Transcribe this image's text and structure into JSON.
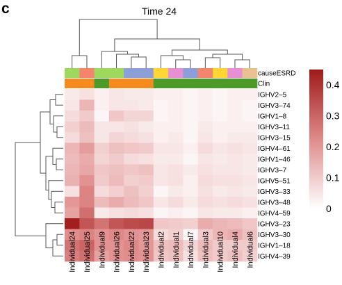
{
  "figure": {
    "panel_letter": "c",
    "annotation_labels": [
      "causeESRD",
      "Clin"
    ]
  },
  "colors": {
    "causeESRD": {
      "yellow_green": "#9ed85f",
      "salmon": "#f4856c",
      "periwinkle": "#8c9fd9",
      "yellow": "#ffd633",
      "pink": "#e68fd4",
      "tan": "#eac291"
    },
    "Clin": {
      "orange": "#f58a1e",
      "green": "#4c9a2a"
    },
    "scale": {
      "low": "#ffffff",
      "high": "#a01a1a"
    }
  },
  "chart_data": {
    "type": "heatmap",
    "title": "Time 24",
    "columns": [
      "Individual24",
      "Individual25",
      "Individual9",
      "Individual26",
      "Individual22",
      "Individual23",
      "Individual2",
      "Individual1",
      "Individual7",
      "Individual3",
      "Individual10",
      "Individual4",
      "Individual6"
    ],
    "rows": [
      "IGHV2–5",
      "IGHV3–74",
      "IGHV1–8",
      "IGHV3–11",
      "IGHV3–15",
      "IGHV4–61",
      "IGHV1–46",
      "IGHV3–7",
      "IGHV5–51",
      "IGHV3–33",
      "IGHV3–48",
      "IGHV4–59",
      "IGHV3–23",
      "IGHV3–30",
      "IGHV1–18",
      "IGHV4–39"
    ],
    "values": [
      [
        0.04,
        0.06,
        0.03,
        0.05,
        0.04,
        0.04,
        0.03,
        0.03,
        0.02,
        0.03,
        0.02,
        0.03,
        0.03
      ],
      [
        0.05,
        0.14,
        0.03,
        0.05,
        0.05,
        0.04,
        0.02,
        0.03,
        0.02,
        0.03,
        0.02,
        0.03,
        0.02
      ],
      [
        0.07,
        0.1,
        0.02,
        0.11,
        0.08,
        0.08,
        0.02,
        0.03,
        0.02,
        0.03,
        0.02,
        0.03,
        0.02
      ],
      [
        0.09,
        0.13,
        0.05,
        0.05,
        0.06,
        0.04,
        0.03,
        0.03,
        0.02,
        0.04,
        0.03,
        0.03,
        0.03
      ],
      [
        0.07,
        0.12,
        0.05,
        0.08,
        0.07,
        0.06,
        0.03,
        0.04,
        0.02,
        0.05,
        0.03,
        0.04,
        0.04
      ],
      [
        0.14,
        0.19,
        0.09,
        0.12,
        0.11,
        0.1,
        0.05,
        0.05,
        0.03,
        0.07,
        0.05,
        0.06,
        0.05
      ],
      [
        0.13,
        0.16,
        0.08,
        0.1,
        0.07,
        0.06,
        0.04,
        0.04,
        0.02,
        0.05,
        0.04,
        0.05,
        0.04
      ],
      [
        0.14,
        0.17,
        0.11,
        0.12,
        0.11,
        0.12,
        0.05,
        0.06,
        0.04,
        0.06,
        0.05,
        0.05,
        0.04
      ],
      [
        0.15,
        0.21,
        0.1,
        0.13,
        0.09,
        0.1,
        0.05,
        0.06,
        0.03,
        0.07,
        0.06,
        0.06,
        0.05
      ],
      [
        0.06,
        0.24,
        0.07,
        0.09,
        0.12,
        0.09,
        0.02,
        0.04,
        0.03,
        0.06,
        0.04,
        0.05,
        0.04
      ],
      [
        0.2,
        0.24,
        0.13,
        0.16,
        0.13,
        0.11,
        0.05,
        0.07,
        0.04,
        0.07,
        0.06,
        0.07,
        0.06
      ],
      [
        0.18,
        0.28,
        0.04,
        0.06,
        0.07,
        0.06,
        0.02,
        0.03,
        0.02,
        0.05,
        0.04,
        0.04,
        0.03
      ],
      [
        0.44,
        0.33,
        0.27,
        0.33,
        0.35,
        0.36,
        0.11,
        0.1,
        0.09,
        0.16,
        0.14,
        0.13,
        0.11
      ],
      [
        0.22,
        0.24,
        0.21,
        0.23,
        0.21,
        0.2,
        0.07,
        0.09,
        0.02,
        0.1,
        0.14,
        0.16,
        0.12
      ],
      [
        0.27,
        0.3,
        0.21,
        0.21,
        0.23,
        0.2,
        0.12,
        0.13,
        0.08,
        0.13,
        0.1,
        0.1,
        0.1
      ],
      [
        0.25,
        0.28,
        0.18,
        0.21,
        0.22,
        0.21,
        0.11,
        0.12,
        0.06,
        0.12,
        0.1,
        0.12,
        0.09
      ]
    ],
    "annotations": {
      "causeESRD": [
        "yellow_green",
        "salmon",
        "yellow_green",
        "yellow_green",
        "periwinkle",
        "periwinkle",
        "yellow",
        "pink",
        "periwinkle",
        "salmon",
        "yellow",
        "pink",
        "tan"
      ],
      "Clin": [
        "orange",
        "orange",
        "green",
        "orange",
        "orange",
        "orange",
        "green",
        "green",
        "green",
        "green",
        "green",
        "green",
        "green"
      ]
    },
    "colorbar": {
      "min": 0,
      "max": 0.45,
      "ticks": [
        "0",
        "0.1",
        "0.2",
        "0.3",
        "0.4"
      ],
      "tick_values": [
        0,
        0.1,
        0.2,
        0.3,
        0.4
      ]
    }
  }
}
